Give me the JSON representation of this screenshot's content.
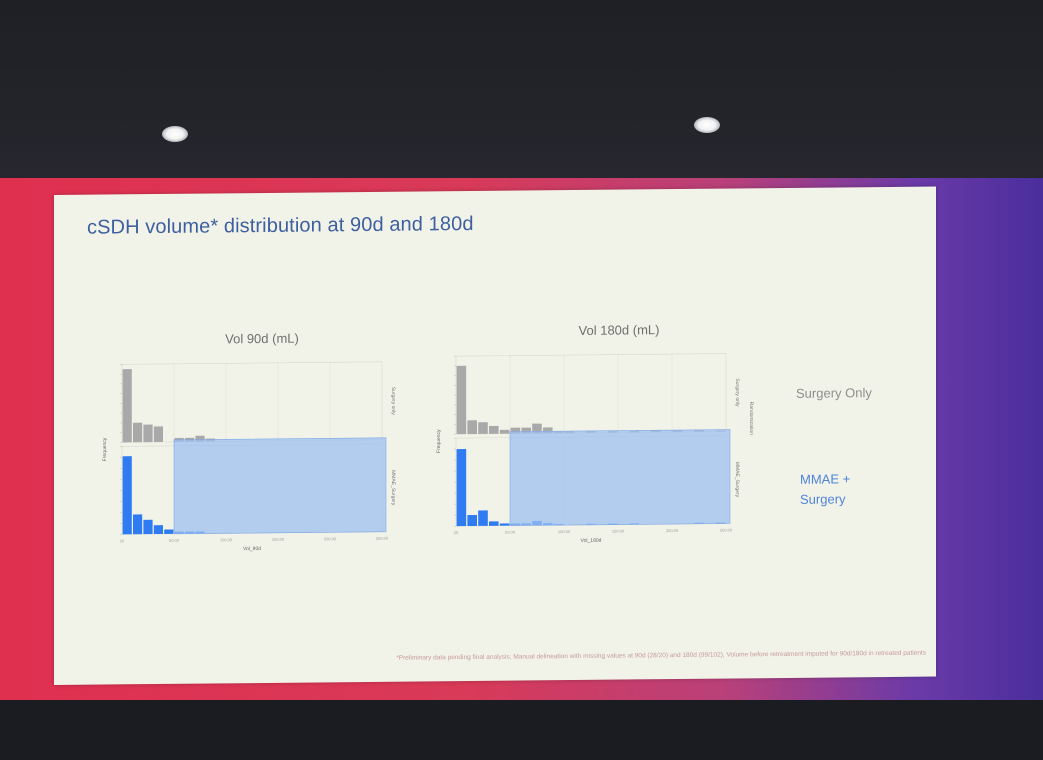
{
  "slide": {
    "title": "cSDH volume* distribution at 90d and 180d",
    "footnote": "*Preliminary data pending final analysis, Manual delineation with missing values at 90d (28/20) and 180d (99/102), Volume before retreatment imputed for 90d/180d in retreated patients"
  },
  "legend": {
    "surgery_only": "Surgery Only",
    "mmae_line1": "MMAE +",
    "mmae_line2": "Surgery"
  },
  "colors": {
    "surgery_bar": "#a9a9a9",
    "mmae_bar": "#2f7bf2",
    "highlight": "#9ec0f2"
  },
  "chart_data": [
    {
      "type": "bar",
      "title": "Vol 90d (mL)",
      "xlabel": "Vol_90d",
      "ylabel": "Frequency",
      "right_top_label": "Surgery only",
      "right_bottom_label": "MMAE_Surgery",
      "xlim": [
        0,
        250
      ],
      "highlight_range": [
        50,
        250
      ],
      "x_ticks": [
        "20",
        "50.00",
        "100.00",
        "150.00",
        "200.00",
        "250.00"
      ],
      "bin_width": 10,
      "bin_starts": [
        0,
        10,
        20,
        30,
        40,
        50,
        60,
        70,
        80,
        90
      ],
      "series": [
        {
          "name": "Surgery only",
          "values": [
            75,
            20,
            18,
            16,
            0,
            4,
            4,
            6,
            3,
            0
          ],
          "ylim": [
            0,
            80
          ]
        },
        {
          "name": "MMAE_Surgery",
          "values": [
            71,
            18,
            13,
            8,
            4,
            2,
            2,
            2,
            0,
            0
          ],
          "ylim": [
            0,
            80
          ]
        }
      ]
    },
    {
      "type": "bar",
      "title": "Vol 180d (mL)",
      "xlabel": "Vol_180d",
      "ylabel": "Frequency",
      "right_top_label": "Surgery only",
      "right_bottom_label": "MMAE_Surgery",
      "middle_label": "Randomization",
      "xlim": [
        0,
        250
      ],
      "highlight_range": [
        50,
        250
      ],
      "x_ticks": [
        "20",
        "50.00",
        "100.00",
        "150.00",
        "200.00",
        "250.00"
      ],
      "bin_width": 10,
      "bin_starts": [
        0,
        10,
        20,
        30,
        40,
        50,
        60,
        70,
        80,
        90,
        100,
        120,
        140,
        160,
        180,
        200,
        220,
        240
      ],
      "series": [
        {
          "name": "Surgery only",
          "values": [
            70,
            14,
            12,
            8,
            4,
            6,
            6,
            10,
            6,
            2,
            2,
            2,
            2,
            2,
            2,
            2,
            2,
            1
          ],
          "ylim": [
            0,
            80
          ]
        },
        {
          "name": "MMAE_Surgery",
          "values": [
            70,
            10,
            14,
            4,
            2,
            2,
            2,
            4,
            2,
            1,
            0,
            1,
            1,
            1,
            0,
            0,
            1,
            1
          ],
          "ylim": [
            0,
            80
          ]
        }
      ]
    }
  ]
}
